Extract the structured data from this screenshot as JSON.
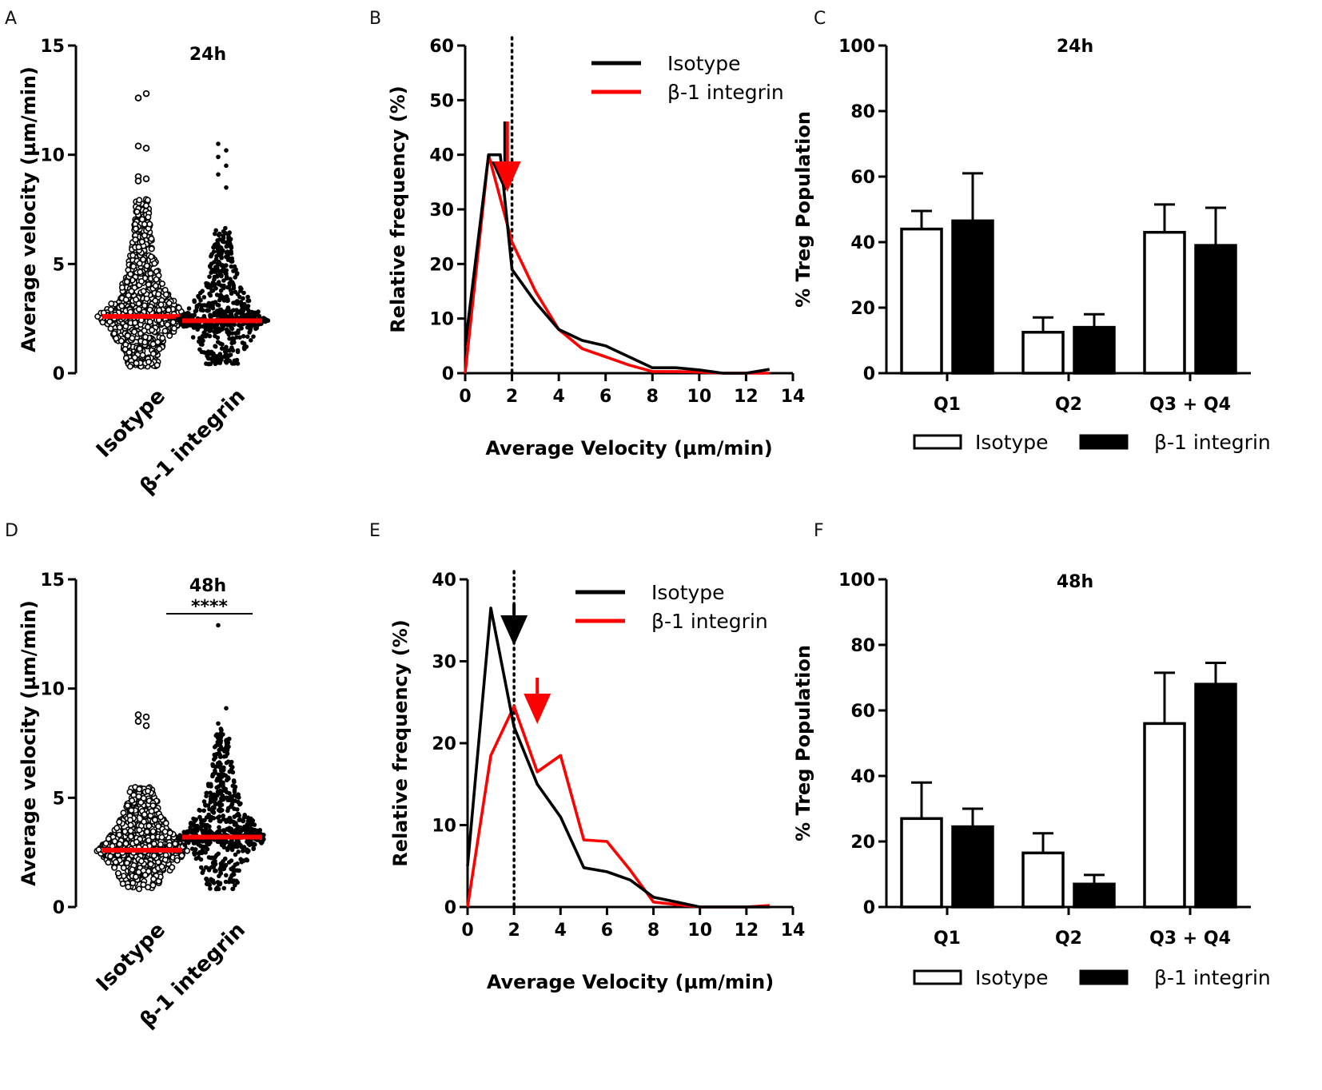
{
  "chart_data": [
    {
      "id": "A",
      "panel_label": "A",
      "type": "scatter",
      "title": "24h",
      "ylabel": "Average velocity (µm/min)",
      "ylim": [
        0,
        15
      ],
      "yticks": [
        0,
        5,
        10,
        15
      ],
      "categories": [
        "Isotype",
        "β-1 integrin"
      ],
      "groups": [
        {
          "name": "Isotype",
          "marker": "open-circle",
          "mean": 2.6,
          "min": 0.3,
          "max": 12.8,
          "n": 800,
          "outliers": [
            12.6,
            12.8,
            10.4,
            10.3,
            9.0,
            8.9,
            8.8
          ]
        },
        {
          "name": "β-1 integrin",
          "marker": "filled-dot",
          "mean": 2.4,
          "min": 0.4,
          "max": 10.5,
          "n": 600,
          "outliers": [
            10.5,
            10.2,
            9.9,
            9.5,
            9.1,
            8.5
          ]
        }
      ],
      "mean_line_color": "#ff0000"
    },
    {
      "id": "B",
      "panel_label": "B",
      "type": "line",
      "title": "",
      "xlabel": "Average Velocity (µm/min)",
      "ylabel": "Relative frequency (%)",
      "xlim": [
        0,
        14
      ],
      "ylim": [
        0,
        60
      ],
      "xticks": [
        0,
        2,
        4,
        6,
        8,
        10,
        12,
        14
      ],
      "yticks": [
        0,
        10,
        20,
        30,
        40,
        50,
        60
      ],
      "reference_line_x": 2,
      "series": [
        {
          "name": "Isotype",
          "color": "#000000",
          "x": [
            0,
            1,
            1.5,
            2,
            3,
            4,
            5,
            6,
            7,
            8,
            9,
            10,
            11,
            12,
            13
          ],
          "y": [
            5,
            40,
            40,
            19,
            13,
            8,
            6,
            5,
            3,
            1,
            1,
            0.6,
            0,
            0,
            0.7
          ],
          "arrow_x": 1.7
        },
        {
          "name": "β-1 integrin",
          "color": "#ff0000",
          "x": [
            0,
            1,
            2,
            3,
            4,
            5,
            6,
            7,
            8,
            9,
            10,
            11,
            12,
            13
          ],
          "y": [
            0,
            40,
            24,
            15,
            8,
            4.5,
            3,
            1.5,
            0.3,
            0.3,
            0.2,
            0,
            0,
            0
          ],
          "arrow_x": 1.8
        }
      ]
    },
    {
      "id": "C",
      "panel_label": "C",
      "type": "bar",
      "title": "24h",
      "ylabel": "% Treg Population",
      "ylim": [
        0,
        100
      ],
      "yticks": [
        0,
        20,
        40,
        60,
        80,
        100
      ],
      "categories": [
        "Q1",
        "Q2",
        "Q3 + Q4"
      ],
      "series": [
        {
          "name": "Isotype",
          "fill": "#ffffff",
          "values": [
            44,
            12.5,
            43
          ],
          "errors": [
            5.5,
            4.5,
            8.5
          ]
        },
        {
          "name": "β-1 integrin",
          "fill": "#000000",
          "values": [
            46.5,
            14,
            39
          ],
          "errors": [
            14.5,
            4,
            11.5
          ]
        }
      ]
    },
    {
      "id": "D",
      "panel_label": "D",
      "type": "scatter",
      "title": "48h",
      "significance": "****",
      "ylabel": "Average velocity (µm/min)",
      "ylim": [
        0,
        15
      ],
      "yticks": [
        0,
        5,
        10,
        15
      ],
      "categories": [
        "Isotype",
        "β-1 integrin"
      ],
      "groups": [
        {
          "name": "Isotype",
          "marker": "open-circle",
          "mean": 2.6,
          "min": 0.3,
          "max": 8.8,
          "n": 800,
          "outliers": [
            8.8,
            8.7,
            8.5,
            8.3
          ]
        },
        {
          "name": "β-1 integrin",
          "marker": "filled-dot",
          "mean": 3.2,
          "min": 0.8,
          "max": 12.9,
          "n": 600,
          "outliers": [
            12.9,
            9.1,
            8.4,
            7.6
          ]
        }
      ],
      "mean_line_color": "#ff0000"
    },
    {
      "id": "E",
      "panel_label": "E",
      "type": "line",
      "title": "",
      "xlabel": "Average Velocity (µm/min)",
      "ylabel": "Relative frequency (%)",
      "xlim": [
        0,
        14
      ],
      "ylim": [
        0,
        40
      ],
      "xticks": [
        0,
        2,
        4,
        6,
        8,
        10,
        12,
        14
      ],
      "yticks": [
        0,
        10,
        20,
        30,
        40
      ],
      "reference_line_x": 2,
      "series": [
        {
          "name": "Isotype",
          "color": "#000000",
          "x": [
            0,
            1,
            2,
            3,
            4,
            5,
            6,
            7,
            8,
            9,
            10,
            11,
            12,
            13
          ],
          "y": [
            5,
            36.5,
            22,
            15,
            11,
            4.8,
            4.3,
            3.3,
            1.2,
            0.6,
            0,
            0,
            0,
            0
          ],
          "arrow_x": 2
        },
        {
          "name": "β-1 integrin",
          "color": "#ff0000",
          "x": [
            0,
            1,
            2,
            3,
            4,
            5,
            6,
            7,
            8,
            9,
            10,
            11,
            12,
            13
          ],
          "y": [
            0,
            18.5,
            24.5,
            16.5,
            18.5,
            8.2,
            8,
            4.5,
            0.6,
            0.3,
            0,
            0,
            0,
            0.2
          ],
          "arrow_x": 3
        }
      ]
    },
    {
      "id": "F",
      "panel_label": "F",
      "type": "bar",
      "title": "48h",
      "ylabel": "% Treg Population",
      "ylim": [
        0,
        100
      ],
      "yticks": [
        0,
        20,
        40,
        60,
        80,
        100
      ],
      "categories": [
        "Q1",
        "Q2",
        "Q3 + Q4"
      ],
      "series": [
        {
          "name": "Isotype",
          "fill": "#ffffff",
          "values": [
            27,
            16.5,
            56
          ],
          "errors": [
            11,
            6,
            15.5
          ]
        },
        {
          "name": "β-1 integrin",
          "fill": "#000000",
          "values": [
            24.5,
            7,
            68
          ],
          "errors": [
            5.5,
            2.8,
            6.5
          ]
        }
      ]
    }
  ]
}
